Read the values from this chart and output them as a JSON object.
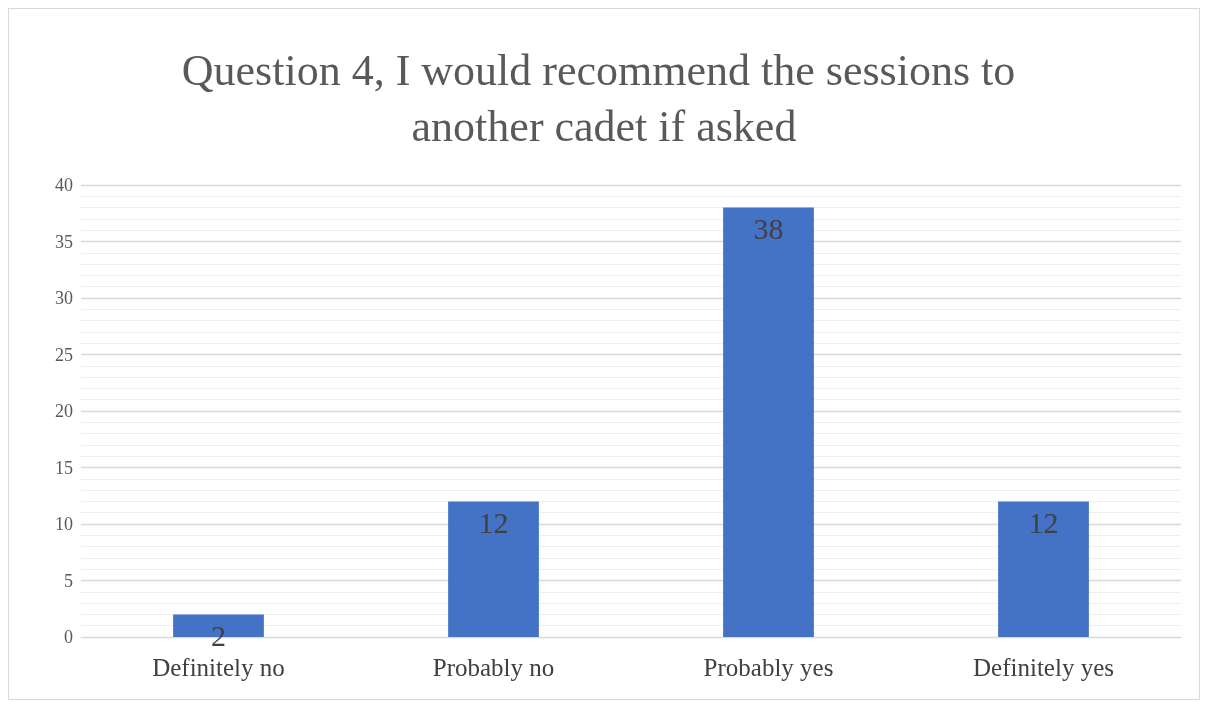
{
  "chart_data": {
    "type": "bar",
    "title": "Question 4, I would recommend the sessions to another cadet if asked",
    "categories": [
      "Definitely no",
      "Probably no",
      "Probably yes",
      "Definitely yes"
    ],
    "values": [
      2,
      12,
      38,
      12
    ],
    "color": "#4472c4",
    "ylim": [
      0,
      40
    ],
    "yticks": [
      0,
      5,
      10,
      15,
      20,
      25,
      30,
      35,
      40
    ],
    "grid": "y",
    "data_labels": true
  }
}
